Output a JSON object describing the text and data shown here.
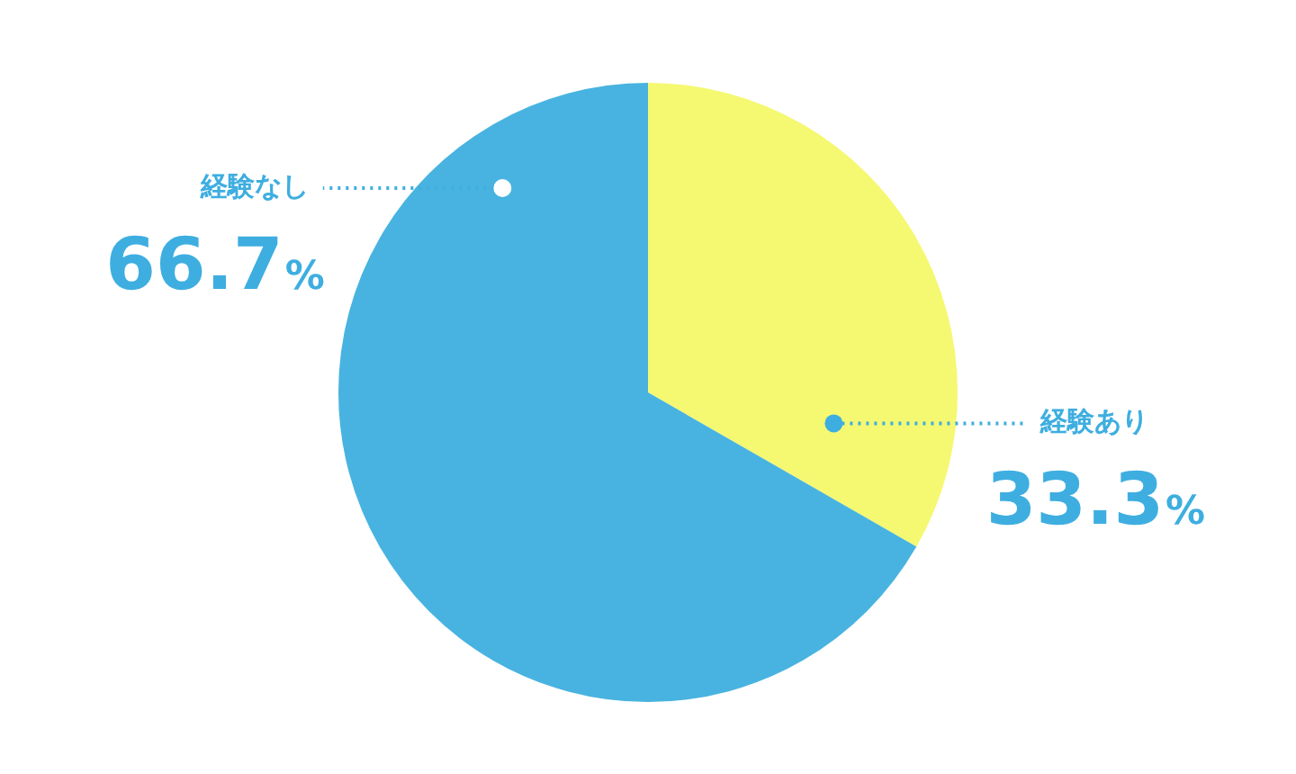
{
  "chart_data": {
    "type": "pie",
    "categories": [
      "経験あり",
      "経験なし"
    ],
    "values": [
      33.3,
      66.7
    ],
    "colors": [
      "#f5f871",
      "#48b3e0"
    ],
    "value_labels": [
      "33.3%",
      "66.7%"
    ],
    "legend": false
  }
}
